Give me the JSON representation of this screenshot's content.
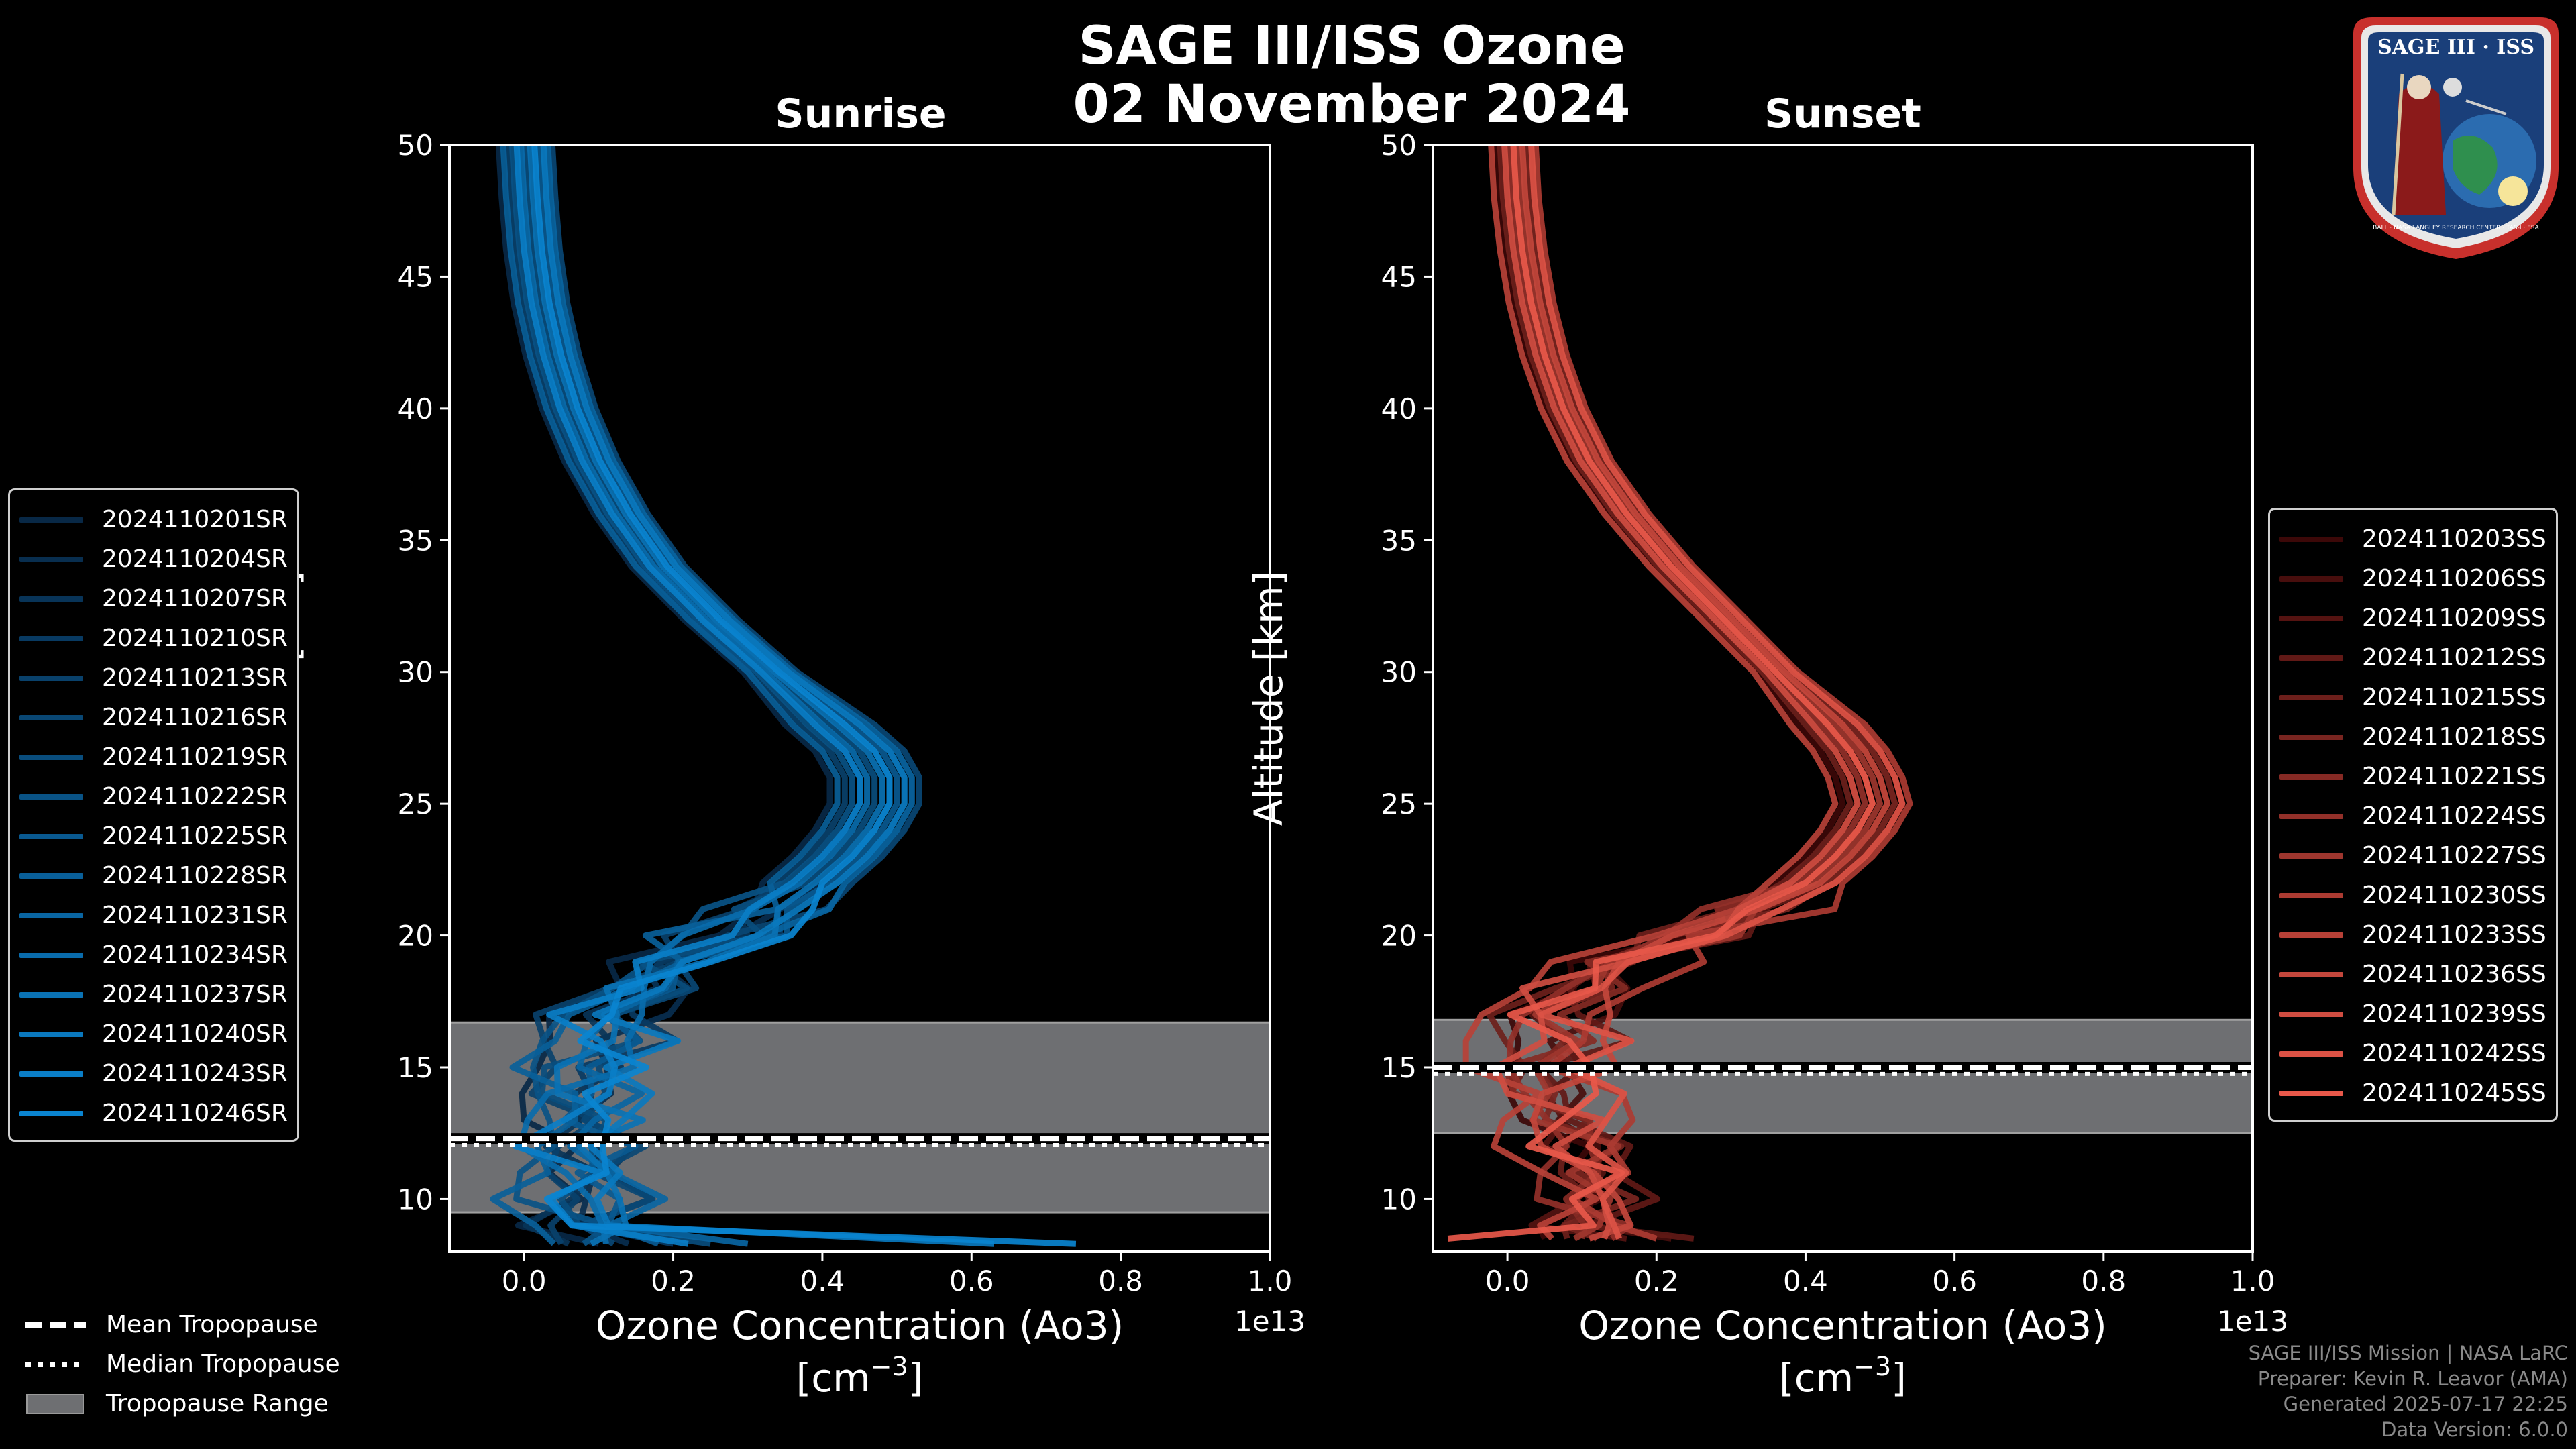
{
  "title_line1": "SAGE III/ISS Ozone",
  "title_line2": "02 November 2024",
  "badge_text": "SAGE III · ISS",
  "badge_ring_text": "BALL · NASA LANGLEY RESEARCH CENTER · TAS-I · ESA",
  "credits": {
    "line1": "SAGE III/ISS Mission | NASA LaRC",
    "line2": "Preparer: Kevin R. Leavor (AMA)",
    "line3": "Generated 2025-07-17 22:25",
    "line4": "Data Version: 6.0.0"
  },
  "bottom_legend": {
    "mean": "Mean Tropopause",
    "median": "Median Tropopause",
    "range": "Tropopause Range"
  },
  "colors": {
    "background": "#000000",
    "sunrise_base": "#0a84d0",
    "sunset_base": "#e8584a",
    "tropopause_range": "#6e6f72"
  },
  "chart_data": [
    {
      "type": "line",
      "panel": "sunrise",
      "title": "Sunrise",
      "xlabel": "Ozone Concentration (Ao3)",
      "xlabel_units": "[cm",
      "xlabel_units_exp": "−3",
      "xlabel_units_close": "]",
      "x_offset_label": "1e13",
      "ylabel": "Altitude [km]",
      "xlim": [
        -0.1,
        1.0
      ],
      "ylim": [
        8,
        50
      ],
      "xticks": [
        0.0,
        0.2,
        0.4,
        0.6,
        0.8,
        1.0
      ],
      "xtick_labels": [
        "0.0",
        "0.2",
        "0.4",
        "0.6",
        "0.8",
        "1.0"
      ],
      "yticks": [
        10,
        15,
        20,
        25,
        30,
        35,
        40,
        45,
        50
      ],
      "ytick_labels": [
        "10",
        "15",
        "20",
        "25",
        "30",
        "35",
        "40",
        "45",
        "50"
      ],
      "tropopause": {
        "mean": 12.3,
        "median": 12.2,
        "range": [
          9.5,
          16.7
        ]
      },
      "legend_placement": "left",
      "mean_profile": {
        "alt": [
          50,
          48,
          46,
          44,
          42,
          40,
          38,
          36,
          34,
          32,
          30,
          28,
          27,
          26,
          25,
          24,
          23,
          22,
          21,
          20,
          19,
          18,
          17,
          16,
          15,
          14,
          13,
          12,
          11,
          10,
          9,
          8.3
        ],
        "o3": [
          0.002,
          0.006,
          0.012,
          0.022,
          0.038,
          0.06,
          0.09,
          0.13,
          0.18,
          0.25,
          0.33,
          0.41,
          0.45,
          0.47,
          0.47,
          0.45,
          0.42,
          0.38,
          0.33,
          0.27,
          0.21,
          0.16,
          0.12,
          0.1,
          0.09,
          0.085,
          0.08,
          0.07,
          0.07,
          0.07,
          0.08,
          0.08
        ]
      },
      "series": [
        {
          "name": "2024110201SR",
          "shift": -0.03,
          "tail": 0.1
        },
        {
          "name": "2024110204SR",
          "shift": 0.01,
          "tail": 0.14
        },
        {
          "name": "2024110207SR",
          "shift": -0.01,
          "tail": 0.06
        },
        {
          "name": "2024110210SR",
          "shift": 0.02,
          "tail": 0.2
        },
        {
          "name": "2024110213SR",
          "shift": -0.02,
          "tail": 0.05
        },
        {
          "name": "2024110216SR",
          "shift": 0.03,
          "tail": 0.12
        },
        {
          "name": "2024110219SR",
          "shift": 0.0,
          "tail": 0.25
        },
        {
          "name": "2024110222SR",
          "shift": -0.015,
          "tail": 0.08
        },
        {
          "name": "2024110225SR",
          "shift": 0.015,
          "tail": 0.18
        },
        {
          "name": "2024110228SR",
          "shift": -0.025,
          "tail": 0.04
        },
        {
          "name": "2024110231SR",
          "shift": 0.025,
          "tail": 0.3
        },
        {
          "name": "2024110234SR",
          "shift": -0.005,
          "tail": 0.11
        },
        {
          "name": "2024110237SR",
          "shift": 0.005,
          "tail": 0.09
        },
        {
          "name": "2024110240SR",
          "shift": 0.02,
          "tail": 0.63
        },
        {
          "name": "2024110243SR",
          "shift": -0.01,
          "tail": 0.22
        },
        {
          "name": "2024110246SR",
          "shift": 0.01,
          "tail": 0.74
        }
      ]
    },
    {
      "type": "line",
      "panel": "sunset",
      "title": "Sunset",
      "xlabel": "Ozone Concentration (Ao3)",
      "xlabel_units": "[cm",
      "xlabel_units_exp": "−3",
      "xlabel_units_close": "]",
      "x_offset_label": "1e13",
      "ylabel": "Altitude [km]",
      "xlim": [
        -0.1,
        1.0
      ],
      "ylim": [
        8,
        50
      ],
      "xticks": [
        0.0,
        0.2,
        0.4,
        0.6,
        0.8,
        1.0
      ],
      "xtick_labels": [
        "0.0",
        "0.2",
        "0.4",
        "0.6",
        "0.8",
        "1.0"
      ],
      "yticks": [
        10,
        15,
        20,
        25,
        30,
        35,
        40,
        45,
        50
      ],
      "ytick_labels": [
        "10",
        "15",
        "20",
        "25",
        "30",
        "35",
        "40",
        "45",
        "50"
      ],
      "tropopause": {
        "mean": 15.0,
        "median": 14.9,
        "range": [
          12.5,
          16.8
        ]
      },
      "legend_placement": "right",
      "mean_profile": {
        "alt": [
          50,
          48,
          46,
          44,
          42,
          40,
          38,
          36,
          34,
          32,
          30,
          28,
          27,
          26,
          25,
          24,
          23,
          22,
          21,
          20,
          19,
          18,
          17,
          16,
          15,
          14,
          13,
          12,
          11,
          10,
          9,
          8.5
        ],
        "o3": [
          0.008,
          0.012,
          0.02,
          0.032,
          0.05,
          0.075,
          0.11,
          0.16,
          0.22,
          0.29,
          0.36,
          0.43,
          0.46,
          0.48,
          0.49,
          0.47,
          0.44,
          0.4,
          0.33,
          0.25,
          0.16,
          0.1,
          0.07,
          0.06,
          0.06,
          0.07,
          0.08,
          0.09,
          0.1,
          0.1,
          0.11,
          0.12
        ]
      },
      "series": [
        {
          "name": "2024110203SS",
          "shift": -0.02,
          "tail": 0.05
        },
        {
          "name": "2024110206SS",
          "shift": 0.01,
          "tail": 0.22
        },
        {
          "name": "2024110209SS",
          "shift": -0.01,
          "tail": 0.16
        },
        {
          "name": "2024110212SS",
          "shift": 0.02,
          "tail": 0.25
        },
        {
          "name": "2024110215SS",
          "shift": -0.015,
          "tail": 0.08
        },
        {
          "name": "2024110218SS",
          "shift": 0.015,
          "tail": 0.12
        },
        {
          "name": "2024110221SS",
          "shift": 0.0,
          "tail": 0.1
        },
        {
          "name": "2024110224SS",
          "shift": -0.005,
          "tail": 0.14
        },
        {
          "name": "2024110227SS",
          "shift": 0.005,
          "tail": 0.09
        },
        {
          "name": "2024110230SS",
          "shift": 0.025,
          "tail": 0.2
        },
        {
          "name": "2024110233SS",
          "shift": -0.025,
          "tail": 0.06
        },
        {
          "name": "2024110236SS",
          "shift": 0.01,
          "tail": 0.11
        },
        {
          "name": "2024110239SS",
          "shift": -0.01,
          "tail": 0.13
        },
        {
          "name": "2024110242SS",
          "shift": 0.02,
          "tail": 0.15
        },
        {
          "name": "2024110245SS",
          "shift": 0.0,
          "tail": -0.08
        }
      ]
    }
  ]
}
